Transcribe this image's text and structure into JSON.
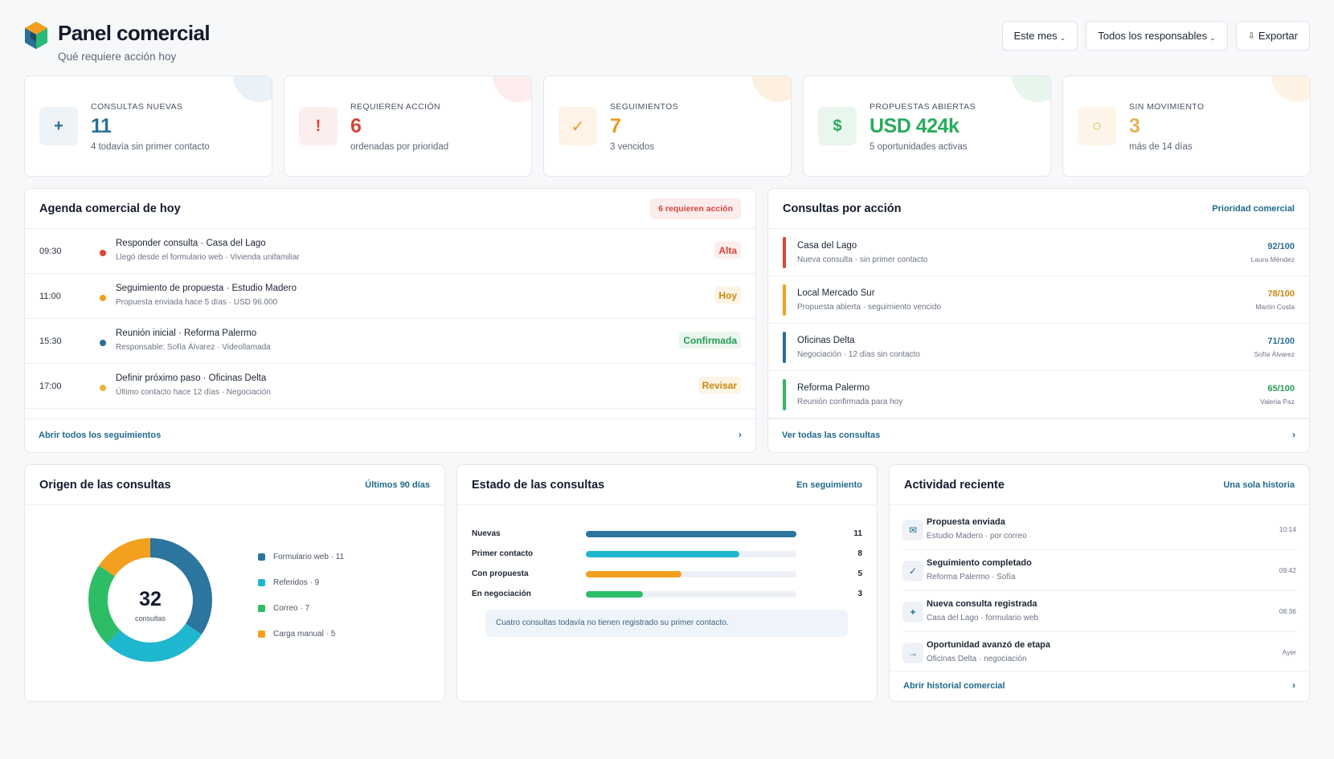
{
  "header": {
    "title": "Panel comercial",
    "subtitle": "Qué requiere acción hoy",
    "buttons": {
      "period": "Este mes",
      "owners": "Todos los responsables",
      "export": "Exportar"
    }
  },
  "kpis": [
    {
      "label": "CONSULTAS NUEVAS",
      "value": "11",
      "sub": "4 todavía sin primer contacto",
      "icon": "+",
      "icon_name": "plus-icon",
      "color": "#2a6f95",
      "bg": "#eef3f8",
      "blob": "#eaf1f7"
    },
    {
      "label": "REQUIEREN ACCIÓN",
      "value": "6",
      "sub": "ordenadas por prioridad",
      "icon": "!",
      "icon_name": "alert-icon",
      "color": "#d2473b",
      "bg": "#fdeeee",
      "blob": "#fcecec"
    },
    {
      "label": "SEGUIMIENTOS",
      "value": "7",
      "sub": "3 vencidos",
      "icon": "✓",
      "icon_name": "check-icon",
      "color": "#ea9a21",
      "bg": "#fdf3e6",
      "blob": "#fdf0e0"
    },
    {
      "label": "PROPUESTAS ABIERTAS",
      "value": "USD 424k",
      "sub": "5 oportunidades activas",
      "icon": "$",
      "icon_name": "dollar-icon",
      "color": "#2aab5c",
      "bg": "#e9f6ee",
      "blob": "#e8f5ed"
    },
    {
      "label": "SIN MOVIMIENTO",
      "value": "3",
      "sub": "más de 14 días",
      "icon": "○",
      "icon_name": "idle-circle-icon",
      "color": "#e1b35a",
      "bg": "#fdf5e9",
      "blob": "#fdf2e4"
    }
  ],
  "agenda": {
    "title": "Agenda comercial de hoy",
    "badge": "6 requieren acción",
    "items": [
      {
        "time": "09:30",
        "title": "Responder consulta · Casa del Lago",
        "desc": "Llegó desde el formulario web · Vivienda unifamiliar",
        "tag": "Alta",
        "dot": "#d9453a",
        "tag_color": "#d9453a",
        "tag_bg": "#fdeeee"
      },
      {
        "time": "11:00",
        "title": "Seguimiento de propuesta · Estudio Madero",
        "desc": "Propuesta enviada hace 5 días · USD 96.000",
        "tag": "Hoy",
        "dot": "#f0a020",
        "tag_color": "#c98710",
        "tag_bg": "#fdf4e4"
      },
      {
        "time": "15:30",
        "title": "Reunión inicial · Reforma Palermo",
        "desc": "Responsable: Sofía Álvarez · Videollamada",
        "tag": "Confirmada",
        "dot": "#2a6f95",
        "tag_color": "#2a9a55",
        "tag_bg": "#eaf6ee"
      },
      {
        "time": "17:00",
        "title": "Definir próximo paso · Oficinas Delta",
        "desc": "Último contacto hace 12 días · Negociación",
        "tag": "Revisar",
        "dot": "#e6b540",
        "tag_color": "#c98710",
        "tag_bg": "#fdf4e4"
      }
    ],
    "footer": "Abrir todos los seguimientos"
  },
  "consultas": {
    "title": "Consultas por acción",
    "link": "Prioridad comercial",
    "items": [
      {
        "name": "Casa del Lago",
        "desc": "Nueva consulta · sin primer contacto",
        "score": "92/100",
        "owner": "Laura Méndez",
        "color": "#d9453a",
        "score_color": "#2a6f95"
      },
      {
        "name": "Local Mercado Sur",
        "desc": "Propuesta abierta · seguimiento vencido",
        "score": "78/100",
        "owner": "Martín Costa",
        "color": "#f0a020",
        "score_color": "#c98710"
      },
      {
        "name": "Oficinas Delta",
        "desc": "Negociación · 12 días sin contacto",
        "score": "71/100",
        "owner": "Sofía Álvarez",
        "color": "#2a6f95",
        "score_color": "#2a6f95"
      },
      {
        "name": "Reforma Palermo",
        "desc": "Reunión confirmada para hoy",
        "score": "65/100",
        "owner": "Valeria Paz",
        "color": "#2eb860",
        "score_color": "#2a9a55"
      }
    ],
    "footer": "Ver todas las consultas"
  },
  "origen": {
    "title": "Origen de las consultas",
    "link": "Últimos 90 días",
    "total": "32",
    "total_label": "consultas",
    "segments": [
      {
        "label": "Formulario web · 11",
        "value": 11,
        "color": "#2b759e"
      },
      {
        "label": "Referidos · 9",
        "value": 9,
        "color": "#1fb7cf"
      },
      {
        "label": "Correo · 7",
        "value": 7,
        "color": "#2dbd66"
      },
      {
        "label": "Carga manual · 5",
        "value": 5,
        "color": "#f3a01f"
      }
    ]
  },
  "estado": {
    "title": "Estado de las consultas",
    "link": "En seguimiento",
    "max": 11,
    "rows": [
      {
        "label": "Nuevas",
        "count": "11",
        "value": 11,
        "color": "#2b759e"
      },
      {
        "label": "Primer contacto",
        "count": "8",
        "value": 8,
        "color": "#1fb7cf"
      },
      {
        "label": "Con propuesta",
        "count": "5",
        "value": 5,
        "color": "#f3a01f"
      },
      {
        "label": "En negociación",
        "count": "3",
        "value": 3,
        "color": "#2dbd66"
      }
    ],
    "note": "Cuatro consultas todavía no tienen registrado su primer contacto."
  },
  "actividad": {
    "title": "Actividad reciente",
    "link": "Una sola historia",
    "items": [
      {
        "title": "Propuesta enviada",
        "desc": "Estudio Madero · por correo",
        "time": "10:14",
        "icon": "✉",
        "icon_name": "mail-icon"
      },
      {
        "title": "Seguimiento completado",
        "desc": "Reforma Palermo · Sofía",
        "time": "09:42",
        "icon": "✓",
        "icon_name": "check-icon"
      },
      {
        "title": "Nueva consulta registrada",
        "desc": "Casa del Lago · formulario web",
        "time": "08:36",
        "icon": "+",
        "icon_name": "plus-icon"
      },
      {
        "title": "Oportunidad avanzó de etapa",
        "desc": "Oficinas Delta · negociación",
        "time": "Ayer",
        "icon": "→",
        "icon_name": "arrow-right-icon"
      }
    ],
    "footer": "Abrir historial comercial"
  }
}
